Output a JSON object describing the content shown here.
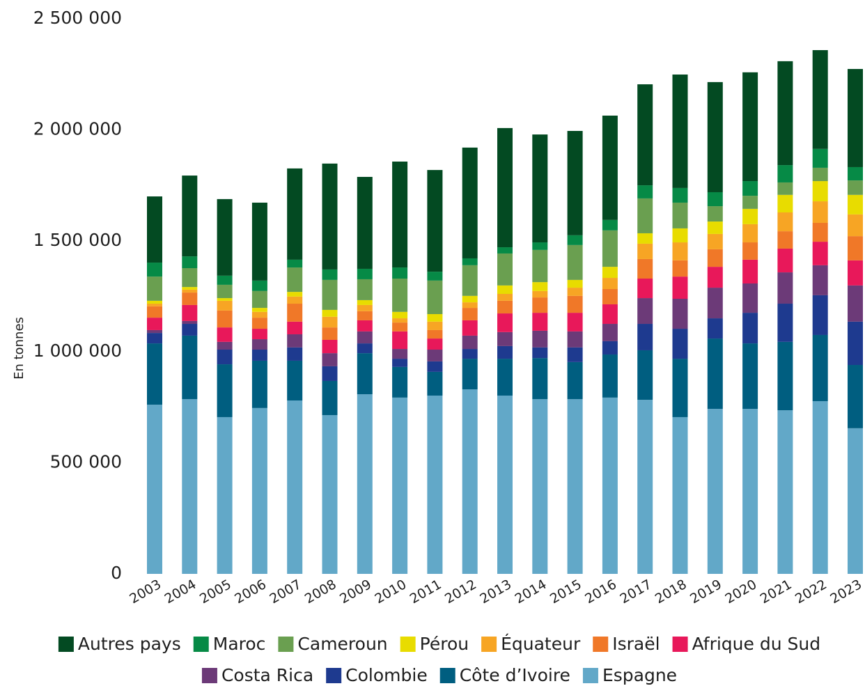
{
  "chart_data": {
    "type": "stacked_bar",
    "ylabel": "En tonnes",
    "categories": [
      "2003",
      "2004",
      "2005",
      "2006",
      "2007",
      "2008",
      "2009",
      "2010",
      "2011",
      "2012",
      "2013",
      "2014",
      "2015",
      "2016",
      "2017",
      "2018",
      "2019",
      "2020",
      "2021",
      "2022",
      "2023"
    ],
    "ylim": [
      0,
      2500000
    ],
    "yticks": [
      0,
      {
        "value": 500000,
        "label": "500 000"
      },
      {
        "value": 1000000,
        "label": "1 000 000"
      },
      {
        "value": 1500000,
        "label": "1 500 000"
      },
      {
        "value": 2000000,
        "label": "2 000 000"
      },
      {
        "value": 2500000,
        "label": "2 500 000"
      }
    ],
    "grid": false,
    "legend": "bottom",
    "series": [
      {
        "name": "Espagne",
        "color": "#62a8c8",
        "values": [
          762000,
          787000,
          706000,
          747000,
          781000,
          715000,
          809000,
          794000,
          803000,
          831000,
          803000,
          787000,
          787000,
          794000,
          784000,
          706000,
          743000,
          743000,
          737000,
          778000,
          656000
        ]
      },
      {
        "name": "Côte d’Ivoire",
        "color": "#005e80",
        "values": [
          276000,
          286000,
          238000,
          213000,
          179000,
          154000,
          185000,
          138000,
          107000,
          138000,
          166000,
          185000,
          167000,
          194000,
          223000,
          263000,
          317000,
          295000,
          308000,
          298000,
          285000
        ]
      },
      {
        "name": "Colombie",
        "color": "#1e3a8f",
        "values": [
          47000,
          53000,
          66000,
          50000,
          60000,
          66000,
          44000,
          37000,
          47000,
          44000,
          57000,
          48000,
          66000,
          60000,
          119000,
          135000,
          91000,
          138000,
          172000,
          179000,
          195000
        ]
      },
      {
        "name": "Costa Rica",
        "color": "#6c3a78",
        "values": [
          13000,
          13000,
          35000,
          47000,
          59000,
          59000,
          54000,
          44000,
          53000,
          60000,
          63000,
          75000,
          72000,
          78000,
          116000,
          135000,
          138000,
          132000,
          141000,
          135000,
          163000
        ]
      },
      {
        "name": "Afrique du Sud",
        "color": "#e8185a",
        "values": [
          56000,
          72000,
          65000,
          47000,
          57000,
          60000,
          50000,
          79000,
          50000,
          69000,
          84000,
          81000,
          84000,
          88000,
          88000,
          100000,
          94000,
          107000,
          107000,
          106000,
          113000
        ]
      },
      {
        "name": "Israël",
        "color": "#f07828",
        "values": [
          51000,
          56000,
          76000,
          50000,
          81000,
          56000,
          41000,
          40000,
          38000,
          56000,
          57000,
          69000,
          76000,
          69000,
          88000,
          73000,
          79000,
          78000,
          78000,
          85000,
          109000
        ]
      },
      {
        "name": "Équateur",
        "color": "#f7a524",
        "values": [
          12000,
          13000,
          44000,
          26000,
          32000,
          48000,
          28000,
          19000,
          38000,
          25000,
          31000,
          29000,
          37000,
          50000,
          69000,
          81000,
          69000,
          82000,
          85000,
          97000,
          98000
        ]
      },
      {
        "name": "Pérou",
        "color": "#e8dc00",
        "values": [
          13000,
          12000,
          12000,
          18000,
          21000,
          31000,
          22000,
          29000,
          34000,
          29000,
          38000,
          40000,
          35000,
          50000,
          47000,
          63000,
          56000,
          69000,
          79000,
          91000,
          88000
        ]
      },
      {
        "name": "Cameroun",
        "color": "#6a9f50",
        "values": [
          109000,
          85000,
          60000,
          76000,
          110000,
          135000,
          94000,
          150000,
          151000,
          138000,
          144000,
          145000,
          157000,
          164000,
          157000,
          116000,
          69000,
          59000,
          56000,
          60000,
          65000
        ]
      },
      {
        "name": "Maroc",
        "color": "#068a46",
        "values": [
          63000,
          53000,
          41000,
          47000,
          35000,
          47000,
          47000,
          50000,
          40000,
          31000,
          28000,
          34000,
          44000,
          47000,
          59000,
          66000,
          63000,
          66000,
          78000,
          85000,
          60000
        ]
      },
      {
        "name": "Autres pays",
        "color": "#034a22",
        "values": [
          298000,
          364000,
          345000,
          351000,
          411000,
          477000,
          414000,
          477000,
          458000,
          499000,
          537000,
          486000,
          470000,
          470000,
          455000,
          511000,
          496000,
          490000,
          468000,
          445000,
          442000
        ]
      }
    ]
  }
}
